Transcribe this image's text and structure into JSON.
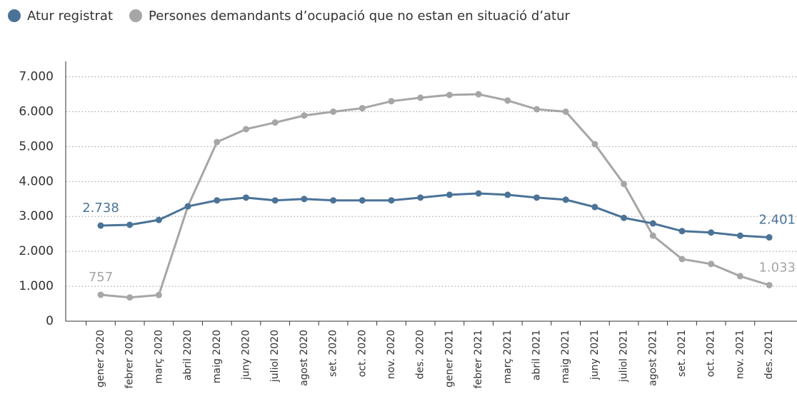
{
  "chart_data": {
    "type": "line",
    "categories": [
      "gener 2020",
      "febrer 2020",
      "març 2020",
      "abril 2020",
      "maig 2020",
      "juny 2020",
      "juliol 2020",
      "agost 2020",
      "set. 2020",
      "oct. 2020",
      "nov. 2020",
      "des. 2020",
      "gener 2021",
      "febrer 2021",
      "març 2021",
      "abril 2021",
      "maig 2021",
      "juny 2021",
      "juliol 2021",
      "agost 2021",
      "set. 2021",
      "oct. 2021",
      "nov. 2021",
      "des. 2021"
    ],
    "series": [
      {
        "name": "Atur registrat",
        "color": "#4b7398",
        "values": [
          2738,
          2760,
          2900,
          3290,
          3460,
          3540,
          3460,
          3500,
          3460,
          3460,
          3460,
          3540,
          3620,
          3660,
          3620,
          3540,
          3480,
          3270,
          2960,
          2800,
          2580,
          2540,
          2450,
          2401
        ],
        "value_labels": [
          "2.738",
          null,
          null,
          null,
          null,
          null,
          null,
          null,
          null,
          null,
          null,
          null,
          null,
          null,
          null,
          null,
          null,
          null,
          null,
          null,
          null,
          null,
          null,
          "2.401"
        ]
      },
      {
        "name": "Persones demandants d’ocupació que no estan en situació d’atur",
        "color": "#a6a6a6",
        "values": [
          757,
          680,
          750,
          3290,
          5130,
          5500,
          5690,
          5890,
          6000,
          6100,
          6300,
          6400,
          6480,
          6500,
          6320,
          6070,
          6000,
          5070,
          3930,
          2450,
          1780,
          1640,
          1290,
          1033
        ],
        "value_labels": [
          "757",
          null,
          null,
          null,
          null,
          null,
          null,
          null,
          null,
          null,
          null,
          null,
          null,
          null,
          null,
          null,
          null,
          null,
          null,
          null,
          null,
          null,
          null,
          "1.033"
        ]
      }
    ],
    "ylim": [
      0,
      7400
    ],
    "yticks": [
      0,
      {
        "value": 1000,
        "label": "1.000"
      },
      {
        "value": 2000,
        "label": "2.000"
      },
      {
        "value": 3000,
        "label": "3.000"
      },
      {
        "value": 4000,
        "label": "4.000"
      },
      {
        "value": 5000,
        "label": "5.000"
      },
      {
        "value": 6000,
        "label": "6.000"
      },
      {
        "value": 7000,
        "label": "7.000"
      }
    ],
    "grid": true
  }
}
